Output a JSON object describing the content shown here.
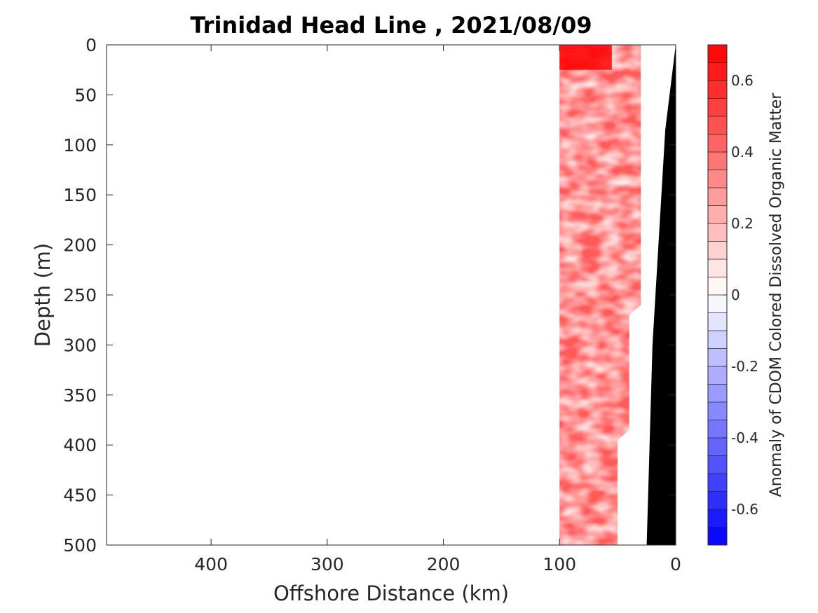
{
  "chart_data": {
    "type": "heatmap",
    "title": "Trinidad Head Line , 2021/08/09",
    "xlabel": "Offshore Distance (km)",
    "ylabel": "Depth (m)",
    "xlim": [
      490,
      0
    ],
    "ylim": [
      0,
      500
    ],
    "x_reversed": true,
    "y_reversed": true,
    "xticks": [
      400,
      300,
      200,
      100,
      0
    ],
    "yticks": [
      0,
      50,
      100,
      150,
      200,
      250,
      300,
      350,
      400,
      450,
      500
    ],
    "colorbar": {
      "label": "Anomaly of CDOM Colored Dissolved Organic Matter",
      "range": [
        -0.7,
        0.7
      ],
      "levels": 28,
      "ticks": [
        -0.6,
        -0.4,
        -0.2,
        0,
        0.2,
        0.4,
        0.6
      ],
      "tick_labels": [
        "-0.6",
        "-0.4",
        "-0.2",
        "0",
        "0.2",
        "0.4",
        "0.6"
      ],
      "colors": [
        "#0000ff",
        "#ffffff",
        "#ff0000"
      ]
    },
    "data_region": {
      "x_range_km": [
        100,
        30
      ],
      "depth_range_m": [
        0,
        500
      ],
      "typical_value": 0.45,
      "max_value": 0.7,
      "inshore_edge_profile": [
        {
          "depth": 0,
          "x": 30
        },
        {
          "depth": 260,
          "x": 30
        },
        {
          "depth": 270,
          "x": 40
        },
        {
          "depth": 385,
          "x": 40
        },
        {
          "depth": 395,
          "x": 50
        },
        {
          "depth": 500,
          "x": 50
        }
      ]
    },
    "bathymetry": {
      "color": "#000000",
      "seafloor_profile": [
        {
          "x": 0,
          "depth": 0
        },
        {
          "x": 9,
          "depth": 85
        },
        {
          "x": 20,
          "depth": 300
        },
        {
          "x": 25,
          "depth": 500
        },
        {
          "x": 0,
          "depth": 500
        }
      ]
    }
  }
}
